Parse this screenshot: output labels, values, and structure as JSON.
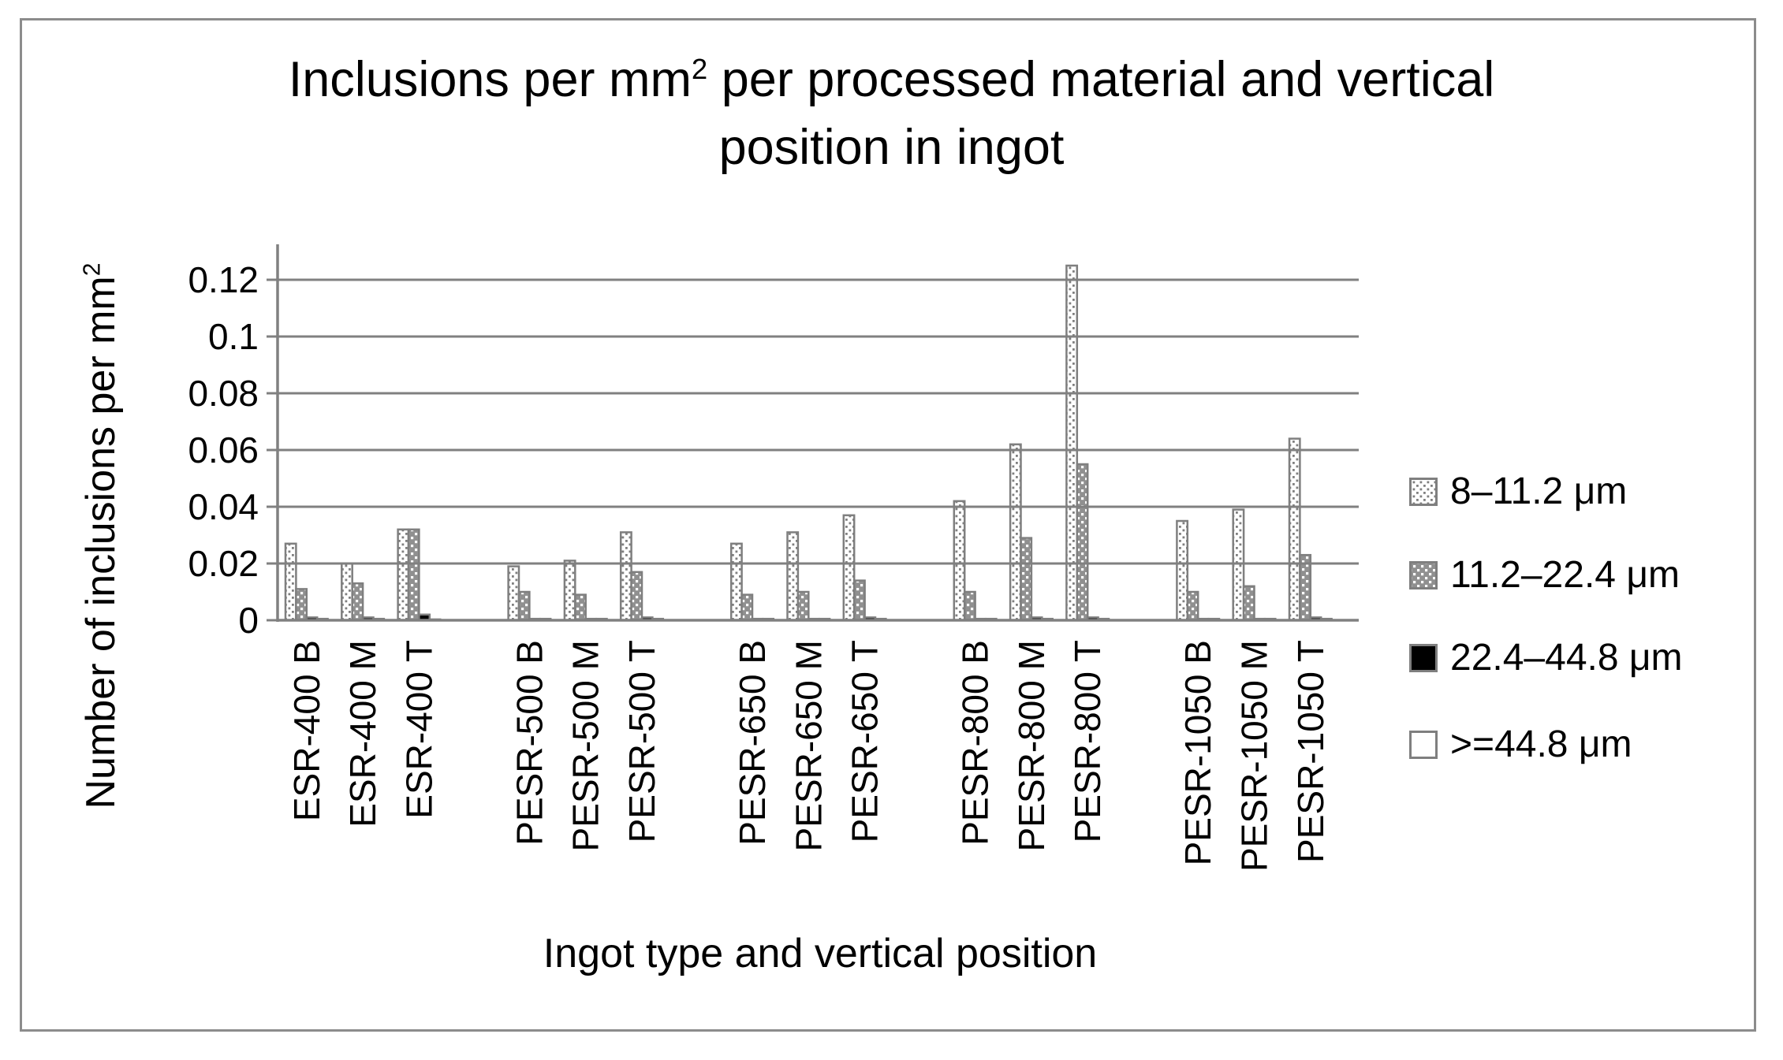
{
  "colors": {
    "background": "#ffffff",
    "frame_border": "#8c8c8c",
    "axis_gray": "#808080",
    "bar_stroke": "#7f7f7f",
    "checker_gray_fill": "#909090",
    "black_fill": "#000000",
    "white_fill": "#ffffff",
    "text": "#000000"
  },
  "title": {
    "line1_prefix": "Inclusions per mm",
    "line1_sup": "2",
    "line1_suffix": " per processed material and vertical",
    "line2": "position in ingot"
  },
  "axes": {
    "y_title_prefix": "Number of inclusions per mm",
    "y_title_sup": "2",
    "x_title": "Ingot type and vertical position"
  },
  "chart_data": {
    "type": "bar",
    "title": "Inclusions per mm2 per processed material and vertical position in ingot",
    "xlabel": "Ingot type and vertical position",
    "ylabel": "Number of inclusions per mm2",
    "grid": true,
    "gridlines_over_bars": true,
    "legend_position": "right",
    "ylim": [
      0,
      0.13
    ],
    "yticks": [
      0,
      0.02,
      0.04,
      0.06,
      0.08,
      0.1,
      0.12
    ],
    "cluster_size": 3,
    "categories": [
      "ESR-400 B",
      "ESR-400 M",
      "ESR-400 T",
      "PESR-500 B",
      "PESR-500 M",
      "PESR-500 T",
      "PESR-650 B",
      "PESR-650 M",
      "PESR-650 T",
      "PESR-800 B",
      "PESR-800 M",
      "PESR-800 T",
      "PESR-1050 B",
      "PESR-1050 M",
      "PESR-1050 T"
    ],
    "series": [
      {
        "name": "8–11.2 μm",
        "pattern": "dots",
        "values": [
          0.027,
          0.02,
          0.032,
          0.019,
          0.021,
          0.031,
          0.027,
          0.031,
          0.037,
          0.042,
          0.062,
          0.125,
          0.035,
          0.039,
          0.064
        ]
      },
      {
        "name": "11.2–22.4 μm",
        "pattern": "checker",
        "values": [
          0.011,
          0.013,
          0.032,
          0.01,
          0.009,
          0.017,
          0.009,
          0.01,
          0.014,
          0.01,
          0.029,
          0.055,
          0.01,
          0.012,
          0.023
        ]
      },
      {
        "name": "22.4–44.8 μm",
        "pattern": "solid-black",
        "values": [
          0.001,
          0.001,
          0.002,
          0.0005,
          0.0005,
          0.001,
          0.0005,
          0.0005,
          0.001,
          0.0005,
          0.001,
          0.001,
          0.0005,
          0.0005,
          0.001
        ]
      },
      {
        "name": ">=44.8 μm",
        "pattern": "solid-white",
        "values": [
          0.0005,
          0.0005,
          0.0003,
          0.0005,
          0.0005,
          0.0005,
          0.0005,
          0.0005,
          0.0005,
          0.0005,
          0.0005,
          0.0005,
          0.0005,
          0.0005,
          0.0005
        ]
      }
    ]
  }
}
